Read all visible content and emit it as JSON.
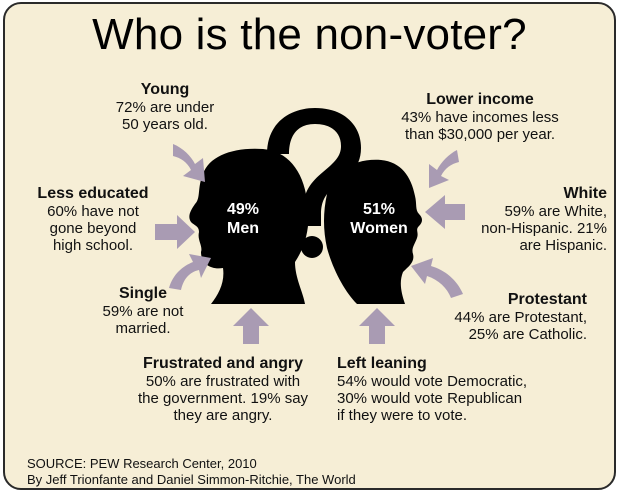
{
  "title": "Who is the non-voter?",
  "men": {
    "percent": "49%",
    "label": "Men"
  },
  "women": {
    "percent": "51%",
    "label": "Women"
  },
  "callouts": {
    "young": {
      "heading": "Young",
      "body": "72% are under\n50 years old."
    },
    "lower_income": {
      "heading": "Lower income",
      "body": "43% have incomes less\nthan $30,000 per year."
    },
    "less_educated": {
      "heading": "Less educated",
      "body": "60% have not\ngone beyond\nhigh school."
    },
    "white": {
      "heading": "White",
      "body": "59% are White,\nnon-Hispanic. 21%\nare Hispanic."
    },
    "single": {
      "heading": "Single",
      "body": "59% are not\nmarried."
    },
    "protestant": {
      "heading": "Protestant",
      "body": "44% are Protestant,\n25% are Catholic."
    },
    "frustrated": {
      "heading": "Frustrated and angry",
      "body": "50% are frustrated with\nthe government. 19% say\nthey are angry."
    },
    "left_leaning": {
      "heading": "Left leaning",
      "body": "54% would vote Democratic,\n30% would vote Republican\nif they were to vote."
    }
  },
  "source": {
    "line1": "SOURCE: PEW Research Center, 2010",
    "line2": "By Jeff Trionfante and Daniel Simmon-Ritchie, The World"
  },
  "colors": {
    "background": "#f6eed6",
    "silhouette": "#000000",
    "arrow": "#a99bb3",
    "question_mark": "#000000"
  },
  "icons": [
    "question-mark-icon",
    "male-head-silhouette-icon",
    "female-head-silhouette-icon",
    "arrow-icon"
  ]
}
